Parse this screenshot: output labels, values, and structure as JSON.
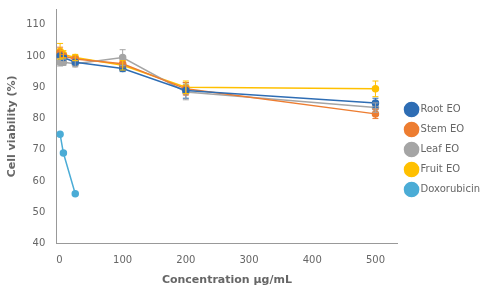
{
  "chart_data": {
    "type": "line",
    "xlabel": "Concentration μg/mL",
    "ylabel": "Cell viability (%)",
    "x": [
      1,
      6.25,
      25,
      100,
      200,
      500
    ],
    "series": [
      {
        "name": "Root EO",
        "color": "#2E6DB4",
        "marker": "o",
        "values": [
          100,
          99.5,
          98,
          96,
          89,
          85
        ],
        "yerr": [
          0.3,
          0.5,
          0.5,
          1.0,
          2.5,
          1.5
        ]
      },
      {
        "name": "Stem EO",
        "color": "#ED7D31",
        "marker": "o",
        "values": [
          101,
          100,
          99,
          97.5,
          89.5,
          81.5
        ],
        "yerr": [
          1.8,
          0.5,
          0.5,
          1.0,
          2.0,
          1.5
        ]
      },
      {
        "name": "Leaf EO",
        "color": "#A5A5A5",
        "marker": "o",
        "values": [
          98,
          98,
          97.5,
          99.5,
          88.5,
          83.5
        ],
        "yerr": [
          1.2,
          1.0,
          1.0,
          2.5,
          2.5,
          1.5
        ]
      },
      {
        "name": "Fruit EO",
        "color": "#FFC000",
        "marker": "o",
        "values": [
          101.5,
          100.5,
          99.5,
          97,
          90,
          89.5
        ],
        "yerr": [
          2.5,
          1.2,
          1.0,
          1.5,
          2.0,
          2.5
        ]
      },
      {
        "name": "Doxorubicin",
        "color": "#4BACD6",
        "marker": "o",
        "values": [
          75,
          69,
          56,
          null,
          null,
          null
        ],
        "yerr": [
          0,
          0,
          0,
          0,
          0,
          0
        ]
      }
    ],
    "xlim": [
      -5,
      535
    ],
    "ylim": [
      40,
      115
    ],
    "xticks": [
      0,
      100,
      200,
      300,
      400,
      500
    ],
    "yticks": [
      40,
      50,
      60,
      70,
      80,
      90,
      100,
      110
    ],
    "grid": false,
    "legend": "right"
  }
}
